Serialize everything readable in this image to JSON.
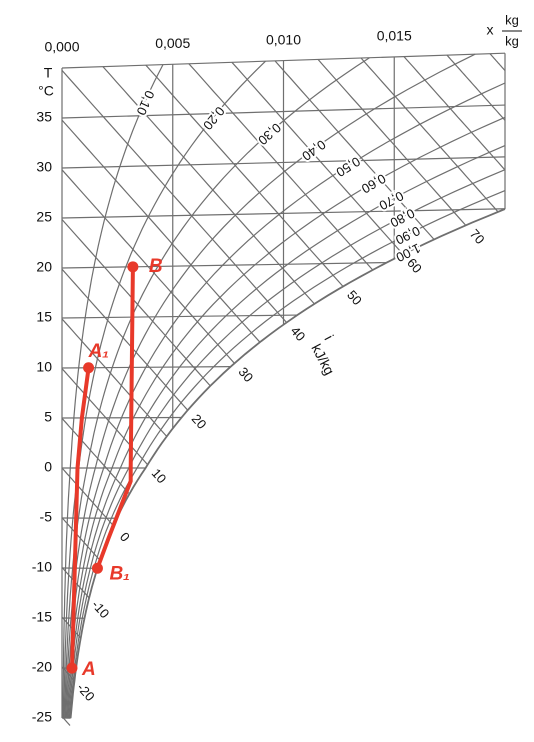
{
  "chart_data": {
    "type": "mollier",
    "y_label": "T",
    "y_unit": "°C",
    "x_label": "x",
    "x_unit_num": "kg",
    "x_unit_den": "kg",
    "h_label": "i",
    "h_unit": "kJ/kg",
    "xlim": [
      0,
      0.02
    ],
    "ylim": [
      -25,
      40
    ],
    "xticks": [
      {
        "value": 0,
        "label": "0,000"
      },
      {
        "value": 0.005,
        "label": "0,005"
      },
      {
        "value": 0.01,
        "label": "0,010"
      },
      {
        "value": 0.015,
        "label": "0,015"
      }
    ],
    "yticks": [
      -25,
      -20,
      -15,
      -10,
      -5,
      0,
      5,
      10,
      15,
      20,
      25,
      30,
      35
    ],
    "rh_curves": [
      {
        "value": 0.1,
        "label": "0,10"
      },
      {
        "value": 0.2,
        "label": "0,20"
      },
      {
        "value": 0.3,
        "label": "0,30"
      },
      {
        "value": 0.4,
        "label": "0,40"
      },
      {
        "value": 0.5,
        "label": "0,50"
      },
      {
        "value": 0.6,
        "label": "0,60"
      },
      {
        "value": 0.7,
        "label": "0,70"
      },
      {
        "value": 0.8,
        "label": "0,80"
      },
      {
        "value": 0.9,
        "label": "0,90"
      },
      {
        "value": 1,
        "label": "1,00"
      }
    ],
    "h_grid": [
      -25,
      -20,
      -15,
      -10,
      -5,
      0,
      5,
      10,
      15,
      20,
      25,
      30,
      35,
      40,
      45,
      50,
      55,
      60,
      65,
      70,
      75,
      80,
      85,
      90
    ],
    "h_labels": [
      -20,
      -10,
      0,
      10,
      20,
      30,
      40,
      50,
      60,
      70
    ],
    "line_color": "#6f6f6f",
    "process_color": "#e8392a",
    "process_lines": [
      {
        "x": [
          0.00045,
          0.00058,
          0.0007,
          0.0009,
          0.0012
        ],
        "T": [
          -20,
          -10,
          0,
          5,
          10
        ]
      },
      {
        "x": [
          0.0032,
          0.0031,
          0.0031,
          0.0021,
          0.0016
        ],
        "T": [
          20,
          0,
          -1.3,
          -7,
          -10
        ]
      }
    ],
    "points": [
      {
        "label": "A",
        "x": 0.00045,
        "T": -20
      },
      {
        "label": "A₁",
        "x": 0.0012,
        "T": 10
      },
      {
        "label": "B",
        "x": 0.0032,
        "T": 20
      },
      {
        "label": "B₁",
        "x": 0.0016,
        "T": -10
      }
    ]
  }
}
